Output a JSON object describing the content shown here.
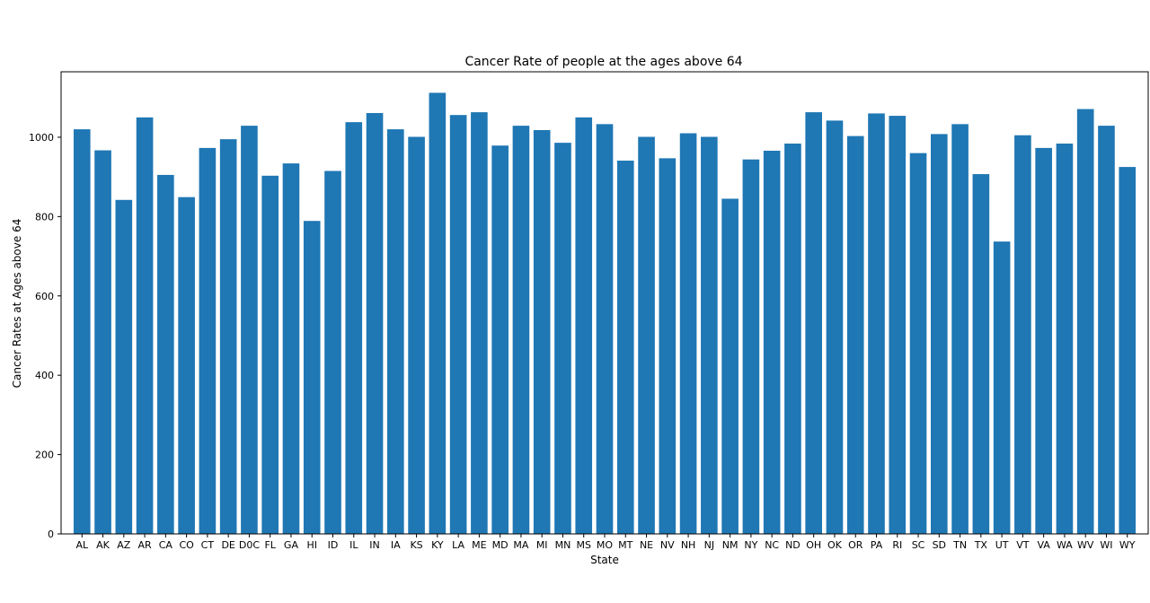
{
  "chart_data": {
    "type": "bar",
    "title": "Cancer Rate of people at the ages above 64",
    "xlabel": "State",
    "ylabel": "Cancer Rates at Ages above 64",
    "ylim": [
      0,
      1165
    ],
    "yticks": [
      0,
      200,
      400,
      600,
      800,
      1000
    ],
    "grid": false,
    "bar_color": "#1f77b4",
    "categories": [
      "AL",
      "AK",
      "AZ",
      "AR",
      "CA",
      "CO",
      "CT",
      "DE",
      "D0C",
      "FL",
      "GA",
      "HI",
      "ID",
      "IL",
      "IN",
      "IA",
      "KS",
      "KY",
      "LA",
      "ME",
      "MD",
      "MA",
      "MI",
      "MN",
      "MS",
      "MO",
      "MT",
      "NE",
      "NV",
      "NH",
      "NJ",
      "NM",
      "NY",
      "NC",
      "ND",
      "OH",
      "OK",
      "OR",
      "PA",
      "RI",
      "SC",
      "SD",
      "TN",
      "TX",
      "UT",
      "VT",
      "VA",
      "WA",
      "WV",
      "WI",
      "WY"
    ],
    "values": [
      1020,
      967,
      842,
      1050,
      905,
      849,
      973,
      995,
      1029,
      903,
      934,
      789,
      915,
      1038,
      1061,
      1020,
      1001,
      1112,
      1056,
      1063,
      979,
      1029,
      1018,
      986,
      1050,
      1033,
      941,
      1001,
      947,
      1010,
      1001,
      845,
      944,
      966,
      984,
      1063,
      1042,
      1003,
      1060,
      1054,
      960,
      1008,
      1033,
      907,
      737,
      1005,
      973,
      984,
      1071,
      1029,
      925
    ]
  }
}
